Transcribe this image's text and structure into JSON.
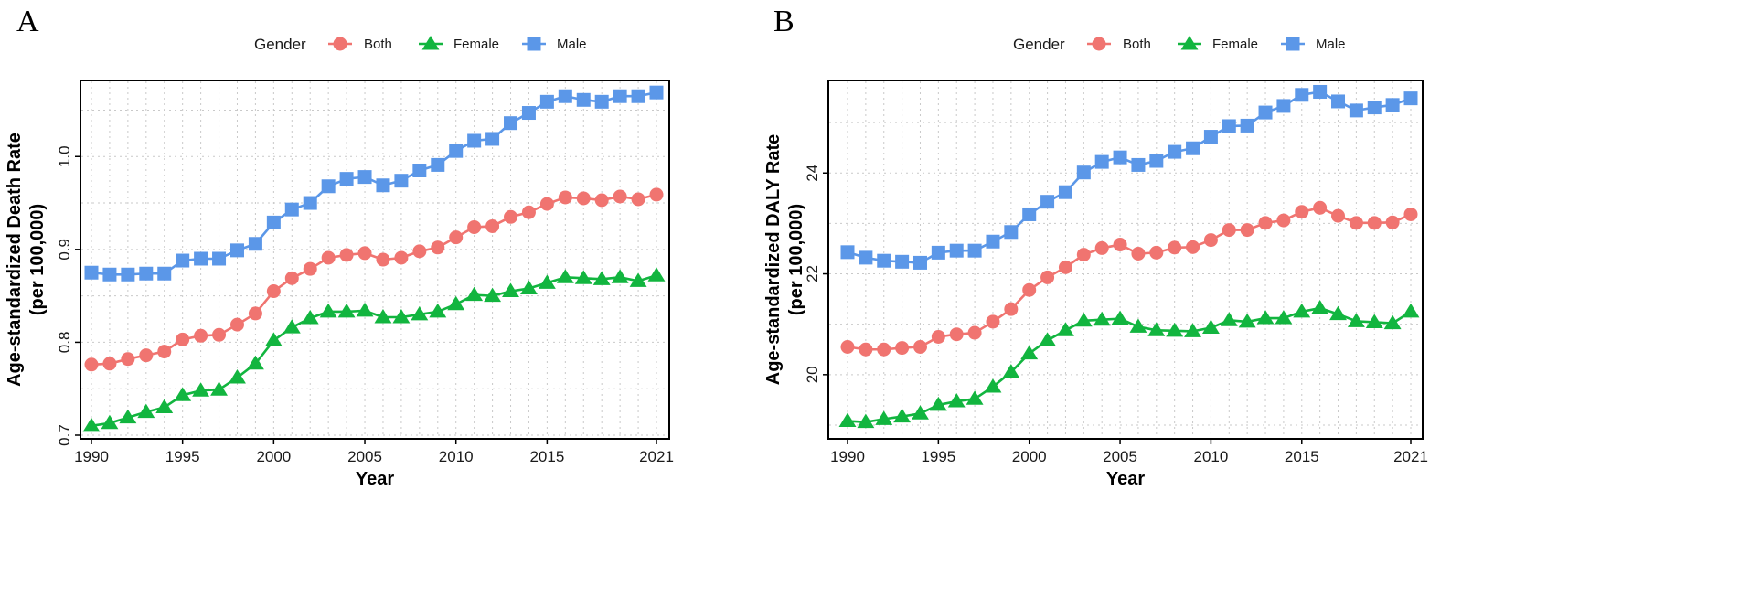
{
  "chart_data": [
    {
      "type": "line",
      "panel_label": "A",
      "legend_title": "Gender",
      "ylabel_line1": "Age-standardized Death Rate",
      "ylabel_line2": "(per 100,000)",
      "xlabel": "Year",
      "xlim": [
        1990,
        2021
      ],
      "ylim": [
        0.7,
        1.08
      ],
      "xticks": [
        1990,
        1995,
        2000,
        2005,
        2010,
        2015,
        2021
      ],
      "yticks": [
        0.7,
        0.8,
        0.9,
        1.0
      ],
      "ytick_labels": [
        "0.7",
        "0.8",
        "0.9",
        "1.0"
      ],
      "x": [
        1990,
        1991,
        1992,
        1993,
        1994,
        1995,
        1996,
        1997,
        1998,
        1999,
        2000,
        2001,
        2002,
        2003,
        2004,
        2005,
        2006,
        2007,
        2008,
        2009,
        2010,
        2011,
        2012,
        2013,
        2014,
        2015,
        2016,
        2017,
        2018,
        2019,
        2020,
        2021
      ],
      "series": [
        {
          "name": "Both",
          "color": "#f07470",
          "marker": "circle",
          "values": [
            0.776,
            0.777,
            0.782,
            0.786,
            0.79,
            0.803,
            0.807,
            0.808,
            0.819,
            0.831,
            0.855,
            0.869,
            0.879,
            0.891,
            0.894,
            0.896,
            0.889,
            0.891,
            0.898,
            0.902,
            0.913,
            0.924,
            0.925,
            0.935,
            0.94,
            0.949,
            0.956,
            0.955,
            0.953,
            0.957,
            0.954,
            0.959
          ]
        },
        {
          "name": "Female",
          "color": "#12b53f",
          "marker": "triangle",
          "values": [
            0.71,
            0.713,
            0.719,
            0.725,
            0.73,
            0.743,
            0.748,
            0.749,
            0.762,
            0.777,
            0.802,
            0.816,
            0.826,
            0.833,
            0.833,
            0.834,
            0.827,
            0.827,
            0.83,
            0.833,
            0.841,
            0.851,
            0.85,
            0.855,
            0.858,
            0.864,
            0.87,
            0.869,
            0.868,
            0.87,
            0.866,
            0.872
          ]
        },
        {
          "name": "Male",
          "color": "#5b97e8",
          "marker": "square",
          "values": [
            0.875,
            0.873,
            0.873,
            0.874,
            0.874,
            0.888,
            0.89,
            0.89,
            0.899,
            0.906,
            0.929,
            0.943,
            0.95,
            0.968,
            0.976,
            0.978,
            0.969,
            0.974,
            0.985,
            0.991,
            1.006,
            1.017,
            1.019,
            1.036,
            1.047,
            1.059,
            1.065,
            1.061,
            1.059,
            1.065,
            1.065,
            1.069
          ]
        }
      ]
    },
    {
      "type": "line",
      "panel_label": "B",
      "legend_title": "Gender",
      "ylabel_line1": "Age-standardized DALY Rate",
      "ylabel_line2": "(per 100,000)",
      "xlabel": "Year",
      "xlim": [
        1990,
        2021
      ],
      "ylim": [
        18.8,
        25.8
      ],
      "xticks": [
        1990,
        1995,
        2000,
        2005,
        2010,
        2015,
        2021
      ],
      "yticks": [
        20,
        22,
        24
      ],
      "ytick_labels": [
        "20",
        "22",
        "24"
      ],
      "x": [
        1990,
        1991,
        1992,
        1993,
        1994,
        1995,
        1996,
        1997,
        1998,
        1999,
        2000,
        2001,
        2002,
        2003,
        2004,
        2005,
        2006,
        2007,
        2008,
        2009,
        2010,
        2011,
        2012,
        2013,
        2014,
        2015,
        2016,
        2017,
        2018,
        2019,
        2020,
        2021
      ],
      "series": [
        {
          "name": "Both",
          "color": "#f07470",
          "marker": "circle",
          "values": [
            20.55,
            20.5,
            20.5,
            20.53,
            20.55,
            20.75,
            20.8,
            20.83,
            21.05,
            21.3,
            21.68,
            21.93,
            22.13,
            22.38,
            22.51,
            22.58,
            22.4,
            22.42,
            22.52,
            22.53,
            22.67,
            22.87,
            22.87,
            23.01,
            23.06,
            23.23,
            23.31,
            23.15,
            23.01,
            23.01,
            23.02,
            23.18
          ]
        },
        {
          "name": "Female",
          "color": "#12b53f",
          "marker": "triangle",
          "values": [
            19.08,
            19.06,
            19.12,
            19.17,
            19.23,
            19.4,
            19.47,
            19.52,
            19.76,
            20.05,
            20.42,
            20.68,
            20.88,
            21.07,
            21.09,
            21.11,
            20.95,
            20.88,
            20.87,
            20.86,
            20.93,
            21.08,
            21.05,
            21.12,
            21.12,
            21.25,
            21.32,
            21.2,
            21.06,
            21.04,
            21.02,
            21.25
          ]
        },
        {
          "name": "Male",
          "color": "#5b97e8",
          "marker": "square",
          "values": [
            22.43,
            22.32,
            22.26,
            22.24,
            22.22,
            22.42,
            22.46,
            22.46,
            22.64,
            22.83,
            23.18,
            23.43,
            23.62,
            24.01,
            24.22,
            24.31,
            24.16,
            24.24,
            24.42,
            24.49,
            24.72,
            24.93,
            24.94,
            25.2,
            25.33,
            25.55,
            25.61,
            25.42,
            25.24,
            25.3,
            25.35,
            25.48
          ]
        }
      ]
    }
  ]
}
